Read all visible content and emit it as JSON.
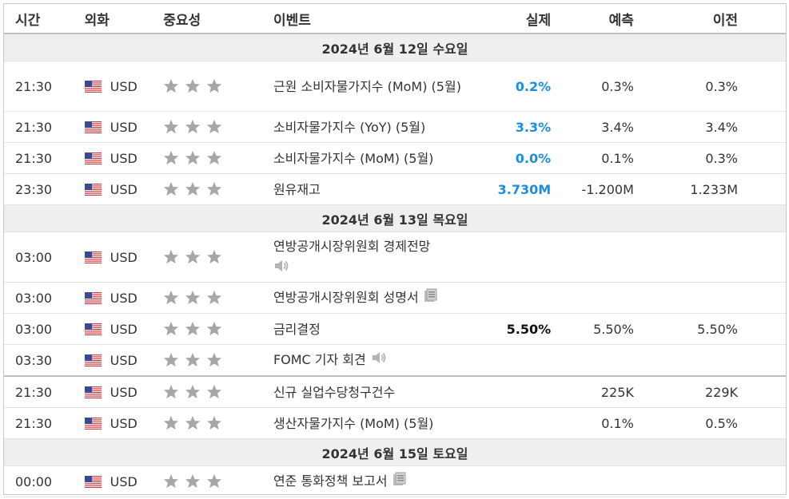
{
  "header": {
    "time": "시간",
    "currency": "외화",
    "importance": "중요성",
    "event": "이벤트",
    "actual": "실제",
    "forecast": "예측",
    "previous": "이전"
  },
  "groups": [
    {
      "date": "2024년 6월 12일 수요일",
      "rows": [
        {
          "time": "21:30",
          "currency": "USD",
          "event": "근원 소비자물가지수 (MoM) (5월)",
          "actual": "0.2%",
          "actual_color": "blue",
          "forecast": "0.3%",
          "previous": "0.3%",
          "icon": ""
        },
        {
          "time": "21:30",
          "currency": "USD",
          "event": "소비자물가지수 (YoY) (5월)",
          "actual": "3.3%",
          "actual_color": "blue",
          "forecast": "3.4%",
          "previous": "3.4%",
          "icon": ""
        },
        {
          "time": "21:30",
          "currency": "USD",
          "event": "소비자물가지수 (MoM) (5월)",
          "actual": "0.0%",
          "actual_color": "blue",
          "forecast": "0.1%",
          "previous": "0.3%",
          "icon": ""
        },
        {
          "time": "23:30",
          "currency": "USD",
          "event": "원유재고",
          "actual": "3.730M",
          "actual_color": "blue",
          "forecast": "-1.200M",
          "previous": "1.233M",
          "icon": ""
        }
      ]
    },
    {
      "date": "2024년 6월 13일 목요일",
      "rows": [
        {
          "time": "03:00",
          "currency": "USD",
          "event": "연방공개시장위원회 경제전망",
          "actual": "",
          "forecast": "",
          "previous": "",
          "icon": "speaker-icon"
        },
        {
          "time": "03:00",
          "currency": "USD",
          "event": "연방공개시장위원회 성명서",
          "actual": "",
          "forecast": "",
          "previous": "",
          "icon": "document-icon"
        },
        {
          "time": "03:00",
          "currency": "USD",
          "event": "금리결정",
          "actual": "5.50%",
          "actual_color": "black",
          "forecast": "5.50%",
          "previous": "5.50%",
          "icon": ""
        },
        {
          "time": "03:30",
          "currency": "USD",
          "event": "FOMC 기자 회견",
          "actual": "",
          "forecast": "",
          "previous": "",
          "icon": "speaker-icon"
        },
        {
          "time": "21:30",
          "currency": "USD",
          "event": "신규 실업수당청구건수",
          "actual": "",
          "forecast": "225K",
          "previous": "229K",
          "icon": ""
        },
        {
          "time": "21:30",
          "currency": "USD",
          "event": "생산자물가지수 (MoM) (5월)",
          "actual": "",
          "forecast": "0.1%",
          "previous": "0.5%",
          "icon": ""
        }
      ]
    },
    {
      "date": "2024년 6월 15일 토요일",
      "rows": [
        {
          "time": "00:00",
          "currency": "USD",
          "event": "연준 통화정책 보고서",
          "actual": "",
          "forecast": "",
          "previous": "",
          "icon": "document-icon"
        }
      ]
    }
  ],
  "importance_stars": 3,
  "colors": {
    "actual_blue": "#1a8fe0",
    "star": "#a7a7a7",
    "date_bg": "#efeff1"
  }
}
